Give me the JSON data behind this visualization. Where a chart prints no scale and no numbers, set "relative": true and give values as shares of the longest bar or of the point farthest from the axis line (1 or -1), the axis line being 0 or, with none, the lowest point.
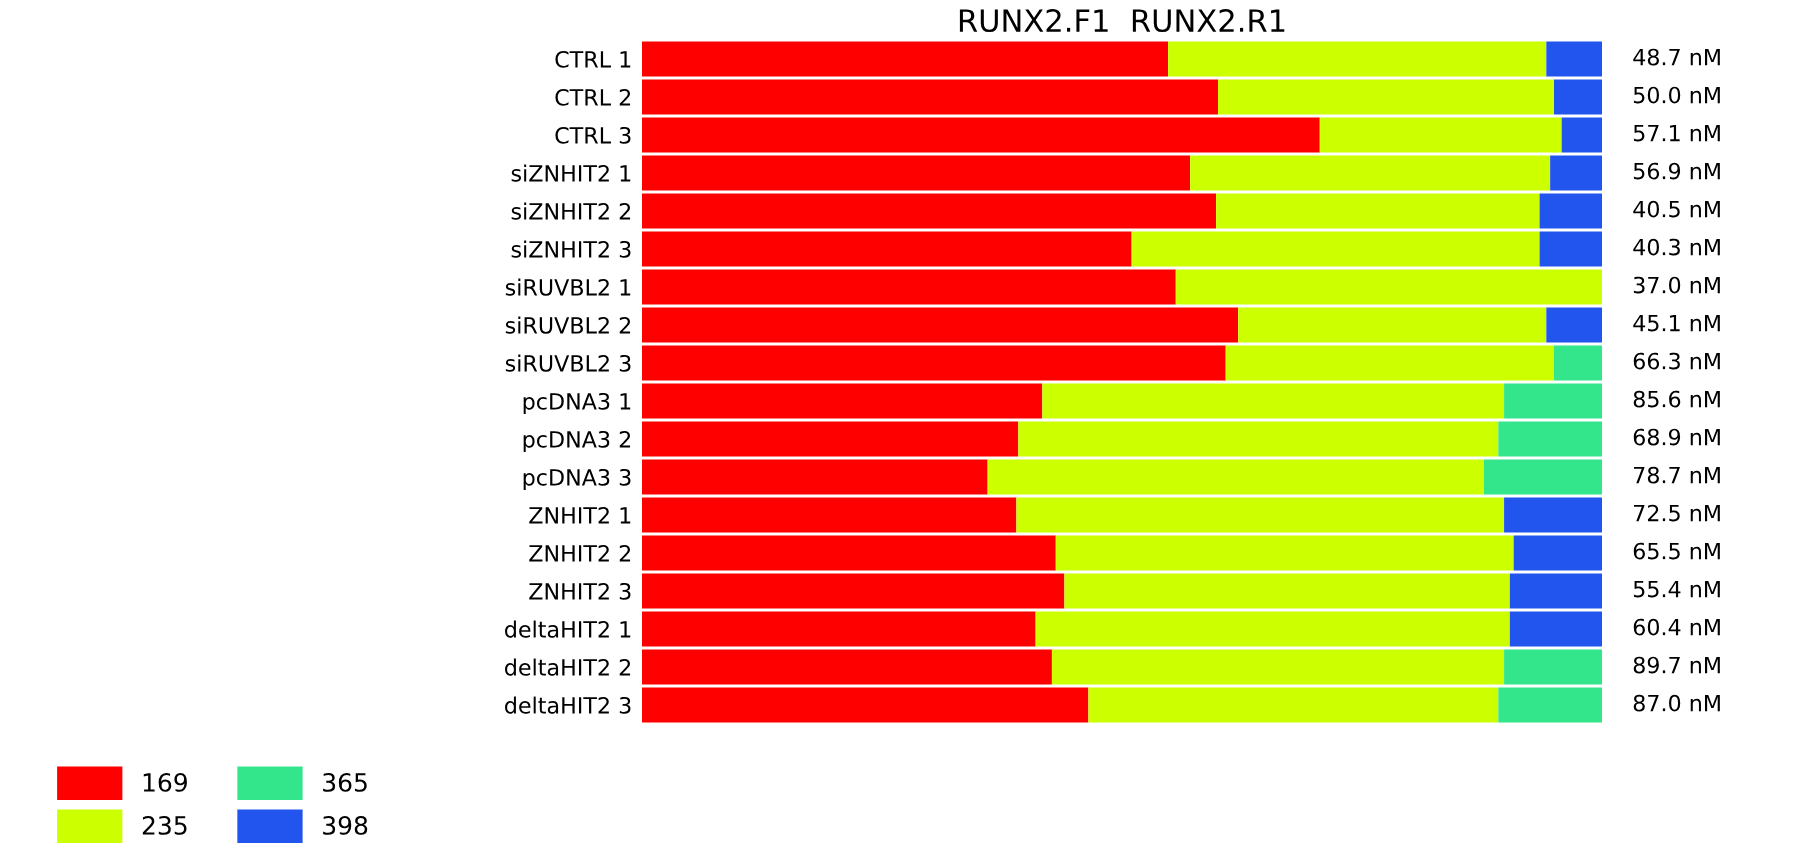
{
  "chart_data": {
    "type": "bar",
    "orientation": "horizontal",
    "stacked": true,
    "relative": true,
    "title": "RUNX2.F1  RUNX2.R1",
    "categories": [
      "CTRL 1",
      "CTRL 2",
      "CTRL 3",
      "siZNHIT2 1",
      "siZNHIT2 2",
      "siZNHIT2 3",
      "siRUVBL2 1",
      "siRUVBL2 2",
      "siRUVBL2 3",
      "pcDNA3 1",
      "pcDNA3 2",
      "pcDNA3 3",
      "ZNHIT2 1",
      "ZNHIT2 2",
      "ZNHIT2 3",
      "deltaHIT2 1",
      "deltaHIT2 2",
      "deltaHIT2 3"
    ],
    "series": [
      {
        "name": "169",
        "color": "#ff0000",
        "values": [
          0.548,
          0.6,
          0.706,
          0.571,
          0.598,
          0.51,
          0.556,
          0.621,
          0.608,
          0.417,
          0.392,
          0.36,
          0.39,
          0.431,
          0.44,
          0.41,
          0.427,
          0.465
        ]
      },
      {
        "name": "235",
        "color": "#ccff00",
        "values": [
          0.394,
          0.35,
          0.252,
          0.375,
          0.337,
          0.425,
          0.444,
          0.321,
          0.342,
          0.481,
          0.5,
          0.517,
          0.508,
          0.477,
          0.464,
          0.494,
          0.471,
          0.427
        ]
      },
      {
        "name": "365",
        "color": "#33e68c",
        "values": [
          null,
          null,
          null,
          null,
          null,
          null,
          null,
          null,
          0.05,
          0.102,
          0.108,
          0.123,
          null,
          null,
          null,
          null,
          0.102,
          0.108
        ]
      },
      {
        "name": "398",
        "color": "#2255ee",
        "values": [
          0.058,
          0.05,
          0.042,
          0.054,
          0.065,
          0.065,
          null,
          0.058,
          null,
          null,
          null,
          null,
          0.102,
          0.092,
          0.096,
          0.096,
          null,
          null
        ]
      }
    ],
    "annotations": [
      "48.7 nM",
      "50.0 nM",
      "57.1 nM",
      "56.9 nM",
      "40.5 nM",
      "40.3 nM",
      "37.0 nM",
      "45.1 nM",
      "66.3 nM",
      "85.6 nM",
      "68.9 nM",
      "78.7 nM",
      "72.5 nM",
      "65.5 nM",
      "55.4 nM",
      "60.4 nM",
      "89.7 nM",
      "87.0 nM"
    ],
    "legend": "bottom left",
    "grid": false
  }
}
